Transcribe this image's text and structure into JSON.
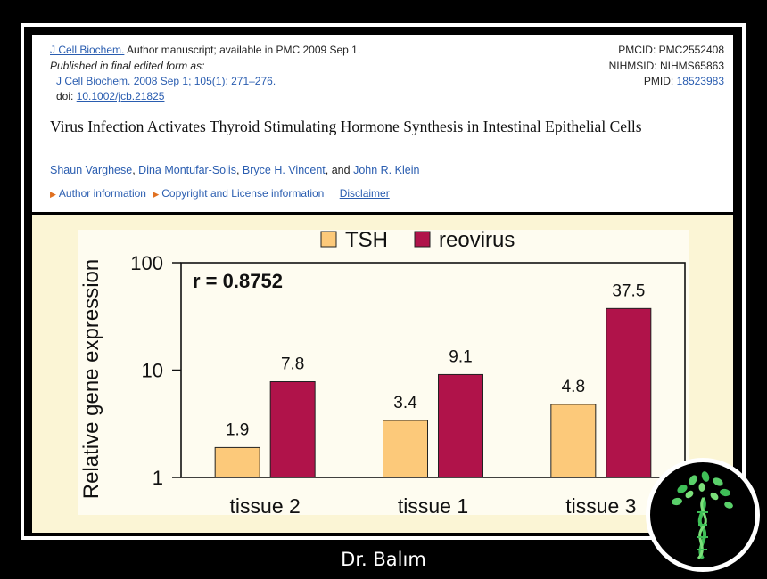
{
  "article": {
    "journal_link": "J Cell Biochem.",
    "journal_note": "Author manuscript; available in PMC 2009 Sep 1.",
    "published_label": "Published in final edited form as:",
    "citation": "J Cell Biochem. 2008 Sep 1; 105(1): 271–276.",
    "doi_label": "doi:",
    "doi": "10.1002/jcb.21825",
    "pmcid": "PMCID: PMC2552408",
    "nihmsid": "NIHMSID: NIHMS65863",
    "pmid_label": "PMID:",
    "pmid": "18523983",
    "title": "Virus Infection Activates Thyroid Stimulating Hormone Synthesis in Intestinal Epithelial Cells",
    "authors": [
      "Shaun Varghese",
      "Dina Montufar-Solis",
      "Bryce H. Vincent",
      "John R. Klein"
    ],
    "author_sep_1": ",",
    "author_sep_2": ",",
    "author_sep_3": ", and",
    "meta_links": [
      "Author information",
      "Copyright and License information"
    ],
    "disclaimer": "Disclaimer"
  },
  "chart_data": {
    "type": "bar",
    "categories": [
      "tissue 2",
      "tissue 1",
      "tissue 3"
    ],
    "series": [
      {
        "name": "TSH",
        "values": [
          1.9,
          3.4,
          4.8
        ],
        "color": "#fcc97a"
      },
      {
        "name": "reovirus",
        "values": [
          7.8,
          9.1,
          37.5
        ],
        "color": "#b0134a"
      }
    ],
    "value_labels": [
      [
        "1.9",
        "3.4",
        "4.8"
      ],
      [
        "7.8",
        "9.1",
        "37.5"
      ]
    ],
    "ylabel": "Relative gene expression",
    "y_scale": "log",
    "ylim": [
      1,
      100
    ],
    "y_ticks": [
      {
        "value": 1,
        "label": "1"
      },
      {
        "value": 10,
        "label": "10"
      },
      {
        "value": 100,
        "label": "100"
      }
    ],
    "annotation": "r = 0.8752",
    "legend_position": "top-center",
    "grid": false
  },
  "footer": {
    "signature": "Dr. Balım",
    "logo_icon": "tree-dna-logo"
  }
}
